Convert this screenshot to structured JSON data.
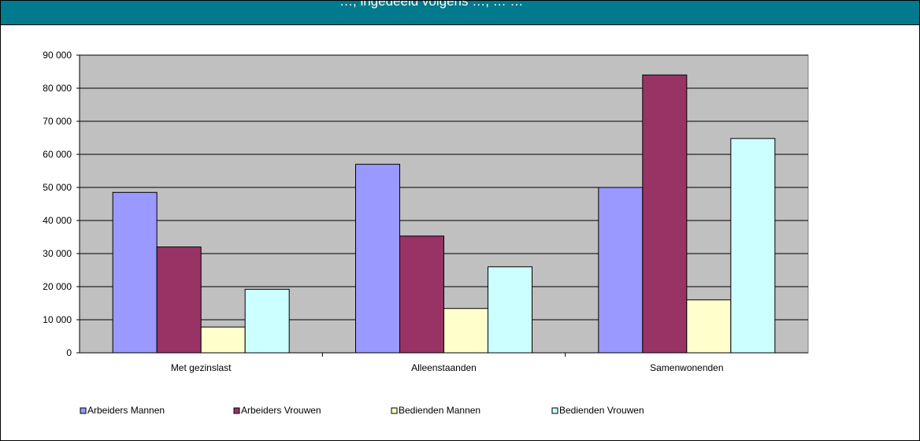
{
  "header": {
    "title": "…, ingedeeld volgens …, … …",
    "color": "#007a8c"
  },
  "chart_data": {
    "type": "bar",
    "categories": [
      "Met gezinslast",
      "Alleenstaanden",
      "Samenwonenden"
    ],
    "series": [
      {
        "name": "Arbeiders Mannen",
        "color": "#9999ff",
        "values": [
          48500,
          57000,
          50000
        ]
      },
      {
        "name": "Arbeiders Vrouwen",
        "color": "#993366",
        "values": [
          32000,
          35300,
          84000
        ]
      },
      {
        "name": "Bedienden Mannen",
        "color": "#ffffcc",
        "values": [
          7800,
          13400,
          16000
        ]
      },
      {
        "name": "Bedienden Vrouwen",
        "color": "#ccffff",
        "values": [
          19200,
          26000,
          64800
        ]
      }
    ],
    "ylim": [
      0,
      90000
    ],
    "yticks": [
      0,
      10000,
      20000,
      30000,
      40000,
      50000,
      60000,
      70000,
      80000,
      90000
    ],
    "ytick_labels": [
      "0",
      "10 000",
      "20 000",
      "30 000",
      "40 000",
      "50 000",
      "60 000",
      "70 000",
      "80 000",
      "90 000"
    ],
    "title": "",
    "xlabel": "",
    "ylabel": "",
    "grid": true,
    "plot_background": "#c0c0c0",
    "legend_position": "bottom"
  }
}
